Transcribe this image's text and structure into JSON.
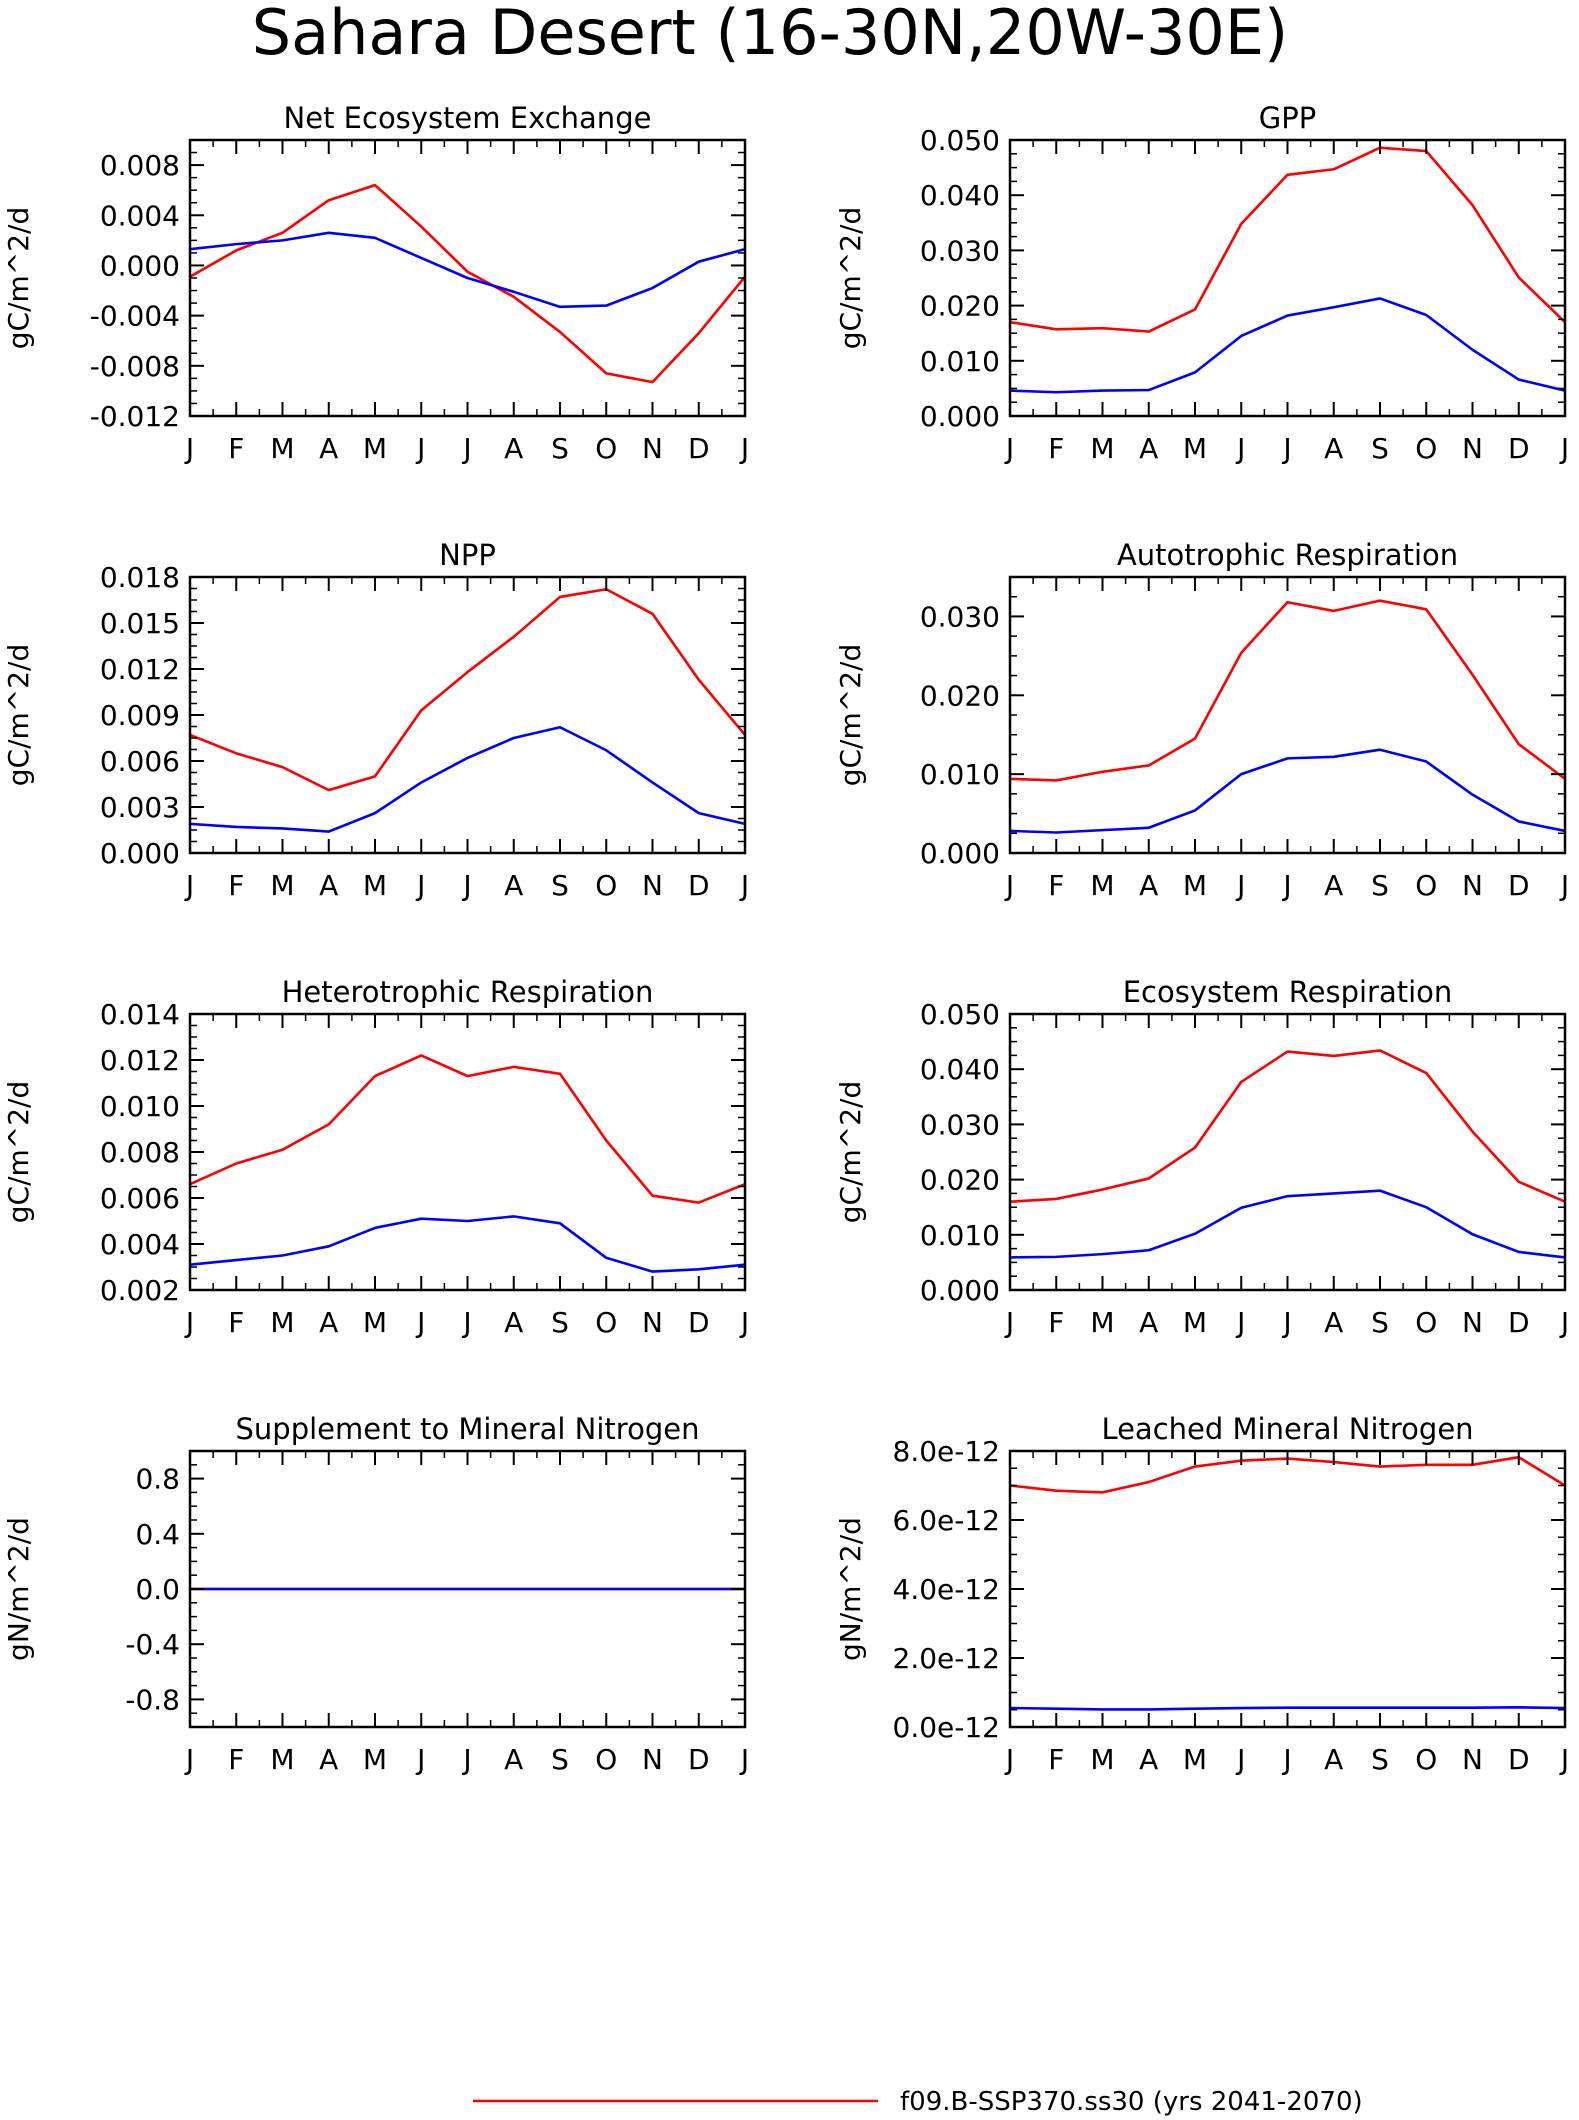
{
  "figure": {
    "title": "Sahara Desert (16-30N,20W-30E)",
    "month_labels": [
      "J",
      "F",
      "M",
      "A",
      "M",
      "J",
      "J",
      "A",
      "S",
      "O",
      "N",
      "D",
      "J"
    ],
    "colors": {
      "scenario_a": "#ff0000",
      "scenario_b": "#0000ff"
    }
  },
  "legend": {
    "items": [
      {
        "label": "f09.B-SSP370.ss30 (yrs 2041-2070)",
        "color": "#ff0000"
      }
    ]
  },
  "chart_data": [
    {
      "type": "line",
      "title": "Net Ecosystem Exchange",
      "ylabel": "gC/m^2/d",
      "ylim": [
        -0.012,
        0.01
      ],
      "yticks": [
        -0.012,
        -0.008,
        -0.004,
        0.0,
        0.004,
        0.008
      ],
      "ytick_labels": [
        "-0.012",
        "-0.008",
        "-0.004",
        "0.000",
        "0.004",
        "0.008"
      ],
      "x": [
        "J",
        "F",
        "M",
        "A",
        "M",
        "J",
        "J",
        "A",
        "S",
        "O",
        "N",
        "D",
        "J"
      ],
      "series": [
        {
          "color": "#ff0000",
          "values": [
            -0.0009,
            0.0012,
            0.0026,
            0.0052,
            0.0064,
            0.0031,
            -0.0005,
            -0.0025,
            -0.0053,
            -0.0086,
            -0.0093,
            -0.0054,
            -0.0009
          ]
        },
        {
          "color": "#0000ff",
          "values": [
            0.0013,
            0.0017,
            0.002,
            0.0026,
            0.0022,
            0.0006,
            -0.001,
            -0.0021,
            -0.0033,
            -0.0032,
            -0.0018,
            0.0003,
            0.0013
          ]
        }
      ]
    },
    {
      "type": "line",
      "title": "GPP",
      "ylabel": "gC/m^2/d",
      "ylim": [
        0.0,
        0.05
      ],
      "yticks": [
        0.0,
        0.01,
        0.02,
        0.03,
        0.04,
        0.05
      ],
      "ytick_labels": [
        "0.000",
        "0.010",
        "0.020",
        "0.030",
        "0.040",
        "0.050"
      ],
      "x": [
        "J",
        "F",
        "M",
        "A",
        "M",
        "J",
        "J",
        "A",
        "S",
        "O",
        "N",
        "D",
        "J"
      ],
      "series": [
        {
          "color": "#ff0000",
          "values": [
            0.017,
            0.0157,
            0.0159,
            0.0153,
            0.0193,
            0.0348,
            0.0437,
            0.0447,
            0.0486,
            0.048,
            0.0382,
            0.0251,
            0.017
          ]
        },
        {
          "color": "#0000ff",
          "values": [
            0.0046,
            0.0043,
            0.0046,
            0.0047,
            0.0079,
            0.0145,
            0.0182,
            0.0197,
            0.0213,
            0.0183,
            0.012,
            0.0066,
            0.0046
          ]
        }
      ]
    },
    {
      "type": "line",
      "title": "NPP",
      "ylabel": "gC/m^2/d",
      "ylim": [
        0.0,
        0.018
      ],
      "yticks": [
        0.0,
        0.003,
        0.006,
        0.009,
        0.012,
        0.015,
        0.018
      ],
      "ytick_labels": [
        "0.000",
        "0.003",
        "0.006",
        "0.009",
        "0.012",
        "0.015",
        "0.018"
      ],
      "x": [
        "J",
        "F",
        "M",
        "A",
        "M",
        "J",
        "J",
        "A",
        "S",
        "O",
        "N",
        "D",
        "J"
      ],
      "series": [
        {
          "color": "#ff0000",
          "values": [
            0.0077,
            0.0065,
            0.0056,
            0.0041,
            0.005,
            0.0093,
            0.0118,
            0.0141,
            0.0167,
            0.0172,
            0.0156,
            0.0113,
            0.0077
          ]
        },
        {
          "color": "#0000ff",
          "values": [
            0.0019,
            0.0017,
            0.0016,
            0.0014,
            0.0026,
            0.0046,
            0.0062,
            0.0075,
            0.0082,
            0.0067,
            0.0046,
            0.0026,
            0.0019
          ]
        }
      ]
    },
    {
      "type": "line",
      "title": "Autotrophic Respiration",
      "ylabel": "gC/m^2/d",
      "ylim": [
        0.0,
        0.035
      ],
      "yticks": [
        0.0,
        0.01,
        0.02,
        0.03
      ],
      "ytick_labels": [
        "0.000",
        "0.010",
        "0.020",
        "0.030"
      ],
      "x": [
        "J",
        "F",
        "M",
        "A",
        "M",
        "J",
        "J",
        "A",
        "S",
        "O",
        "N",
        "D",
        "J"
      ],
      "series": [
        {
          "color": "#ff0000",
          "values": [
            0.0094,
            0.0092,
            0.0103,
            0.0111,
            0.0145,
            0.0254,
            0.0318,
            0.0307,
            0.032,
            0.0309,
            0.0226,
            0.0138,
            0.0094
          ]
        },
        {
          "color": "#0000ff",
          "values": [
            0.0028,
            0.0026,
            0.0029,
            0.0032,
            0.0054,
            0.01,
            0.012,
            0.0122,
            0.0131,
            0.0116,
            0.0074,
            0.004,
            0.0028
          ]
        }
      ]
    },
    {
      "type": "line",
      "title": "Heterotrophic Respiration",
      "ylabel": "gC/m^2/d",
      "ylim": [
        0.002,
        0.014
      ],
      "yticks": [
        0.002,
        0.004,
        0.006,
        0.008,
        0.01,
        0.012,
        0.014
      ],
      "ytick_labels": [
        "0.002",
        "0.004",
        "0.006",
        "0.008",
        "0.010",
        "0.012",
        "0.014"
      ],
      "x": [
        "J",
        "F",
        "M",
        "A",
        "M",
        "J",
        "J",
        "A",
        "S",
        "O",
        "N",
        "D",
        "J"
      ],
      "series": [
        {
          "color": "#ff0000",
          "values": [
            0.0066,
            0.0075,
            0.0081,
            0.0092,
            0.0113,
            0.0122,
            0.0113,
            0.0117,
            0.0114,
            0.0085,
            0.0061,
            0.0058,
            0.0066
          ]
        },
        {
          "color": "#0000ff",
          "values": [
            0.0031,
            0.0033,
            0.0035,
            0.0039,
            0.0047,
            0.0051,
            0.005,
            0.0052,
            0.0049,
            0.0034,
            0.0028,
            0.0029,
            0.0031
          ]
        }
      ]
    },
    {
      "type": "line",
      "title": "Ecosystem Respiration",
      "ylabel": "gC/m^2/d",
      "ylim": [
        0.0,
        0.05
      ],
      "yticks": [
        0.0,
        0.01,
        0.02,
        0.03,
        0.04,
        0.05
      ],
      "ytick_labels": [
        "0.000",
        "0.010",
        "0.020",
        "0.030",
        "0.040",
        "0.050"
      ],
      "x": [
        "J",
        "F",
        "M",
        "A",
        "M",
        "J",
        "J",
        "A",
        "S",
        "O",
        "N",
        "D",
        "J"
      ],
      "series": [
        {
          "color": "#ff0000",
          "values": [
            0.016,
            0.0165,
            0.0182,
            0.0202,
            0.0258,
            0.0377,
            0.0432,
            0.0424,
            0.0434,
            0.0393,
            0.0287,
            0.0196,
            0.016
          ]
        },
        {
          "color": "#0000ff",
          "values": [
            0.0059,
            0.006,
            0.0065,
            0.0072,
            0.0102,
            0.0149,
            0.017,
            0.0175,
            0.018,
            0.015,
            0.0101,
            0.0069,
            0.0059
          ]
        }
      ]
    },
    {
      "type": "line",
      "title": "Supplement to Mineral Nitrogen",
      "ylabel": "gN/m^2/d",
      "ylim": [
        -1.0,
        1.0
      ],
      "yticks": [
        -0.8,
        -0.4,
        0.0,
        0.4,
        0.8
      ],
      "ytick_labels": [
        "-0.8",
        "-0.4",
        "0.0",
        "0.4",
        "0.8"
      ],
      "x": [
        "J",
        "F",
        "M",
        "A",
        "M",
        "J",
        "J",
        "A",
        "S",
        "O",
        "N",
        "D",
        "J"
      ],
      "series": [
        {
          "color": "#ff0000",
          "values": [
            0,
            0,
            0,
            0,
            0,
            0,
            0,
            0,
            0,
            0,
            0,
            0,
            0
          ]
        },
        {
          "color": "#0000ff",
          "values": [
            0,
            0,
            0,
            0,
            0,
            0,
            0,
            0,
            0,
            0,
            0,
            0,
            0
          ]
        }
      ]
    },
    {
      "type": "line",
      "title": "Leached Mineral Nitrogen",
      "ylabel": "gN/m^2/d",
      "ylim": [
        0.0,
        8e-12
      ],
      "yticks": [
        0.0,
        2e-12,
        4e-12,
        6e-12,
        8e-12
      ],
      "ytick_labels": [
        "0.0e-12",
        "2.0e-12",
        "4.0e-12",
        "6.0e-12",
        "8.0e-12"
      ],
      "x": [
        "J",
        "F",
        "M",
        "A",
        "M",
        "J",
        "J",
        "A",
        "S",
        "O",
        "N",
        "D",
        "J"
      ],
      "series": [
        {
          "color": "#ff0000",
          "values": [
            7e-12,
            6.85e-12,
            6.8e-12,
            7.1e-12,
            7.55e-12,
            7.72e-12,
            7.78e-12,
            7.68e-12,
            7.55e-12,
            7.6e-12,
            7.6e-12,
            7.82e-12,
            7e-12
          ]
        },
        {
          "color": "#0000ff",
          "values": [
            5.5e-13,
            5.3e-13,
            5.1e-13,
            5.1e-13,
            5.3e-13,
            5.5e-13,
            5.6e-13,
            5.6e-13,
            5.6e-13,
            5.6e-13,
            5.6e-13,
            5.7e-13,
            5.5e-13
          ]
        }
      ]
    }
  ]
}
